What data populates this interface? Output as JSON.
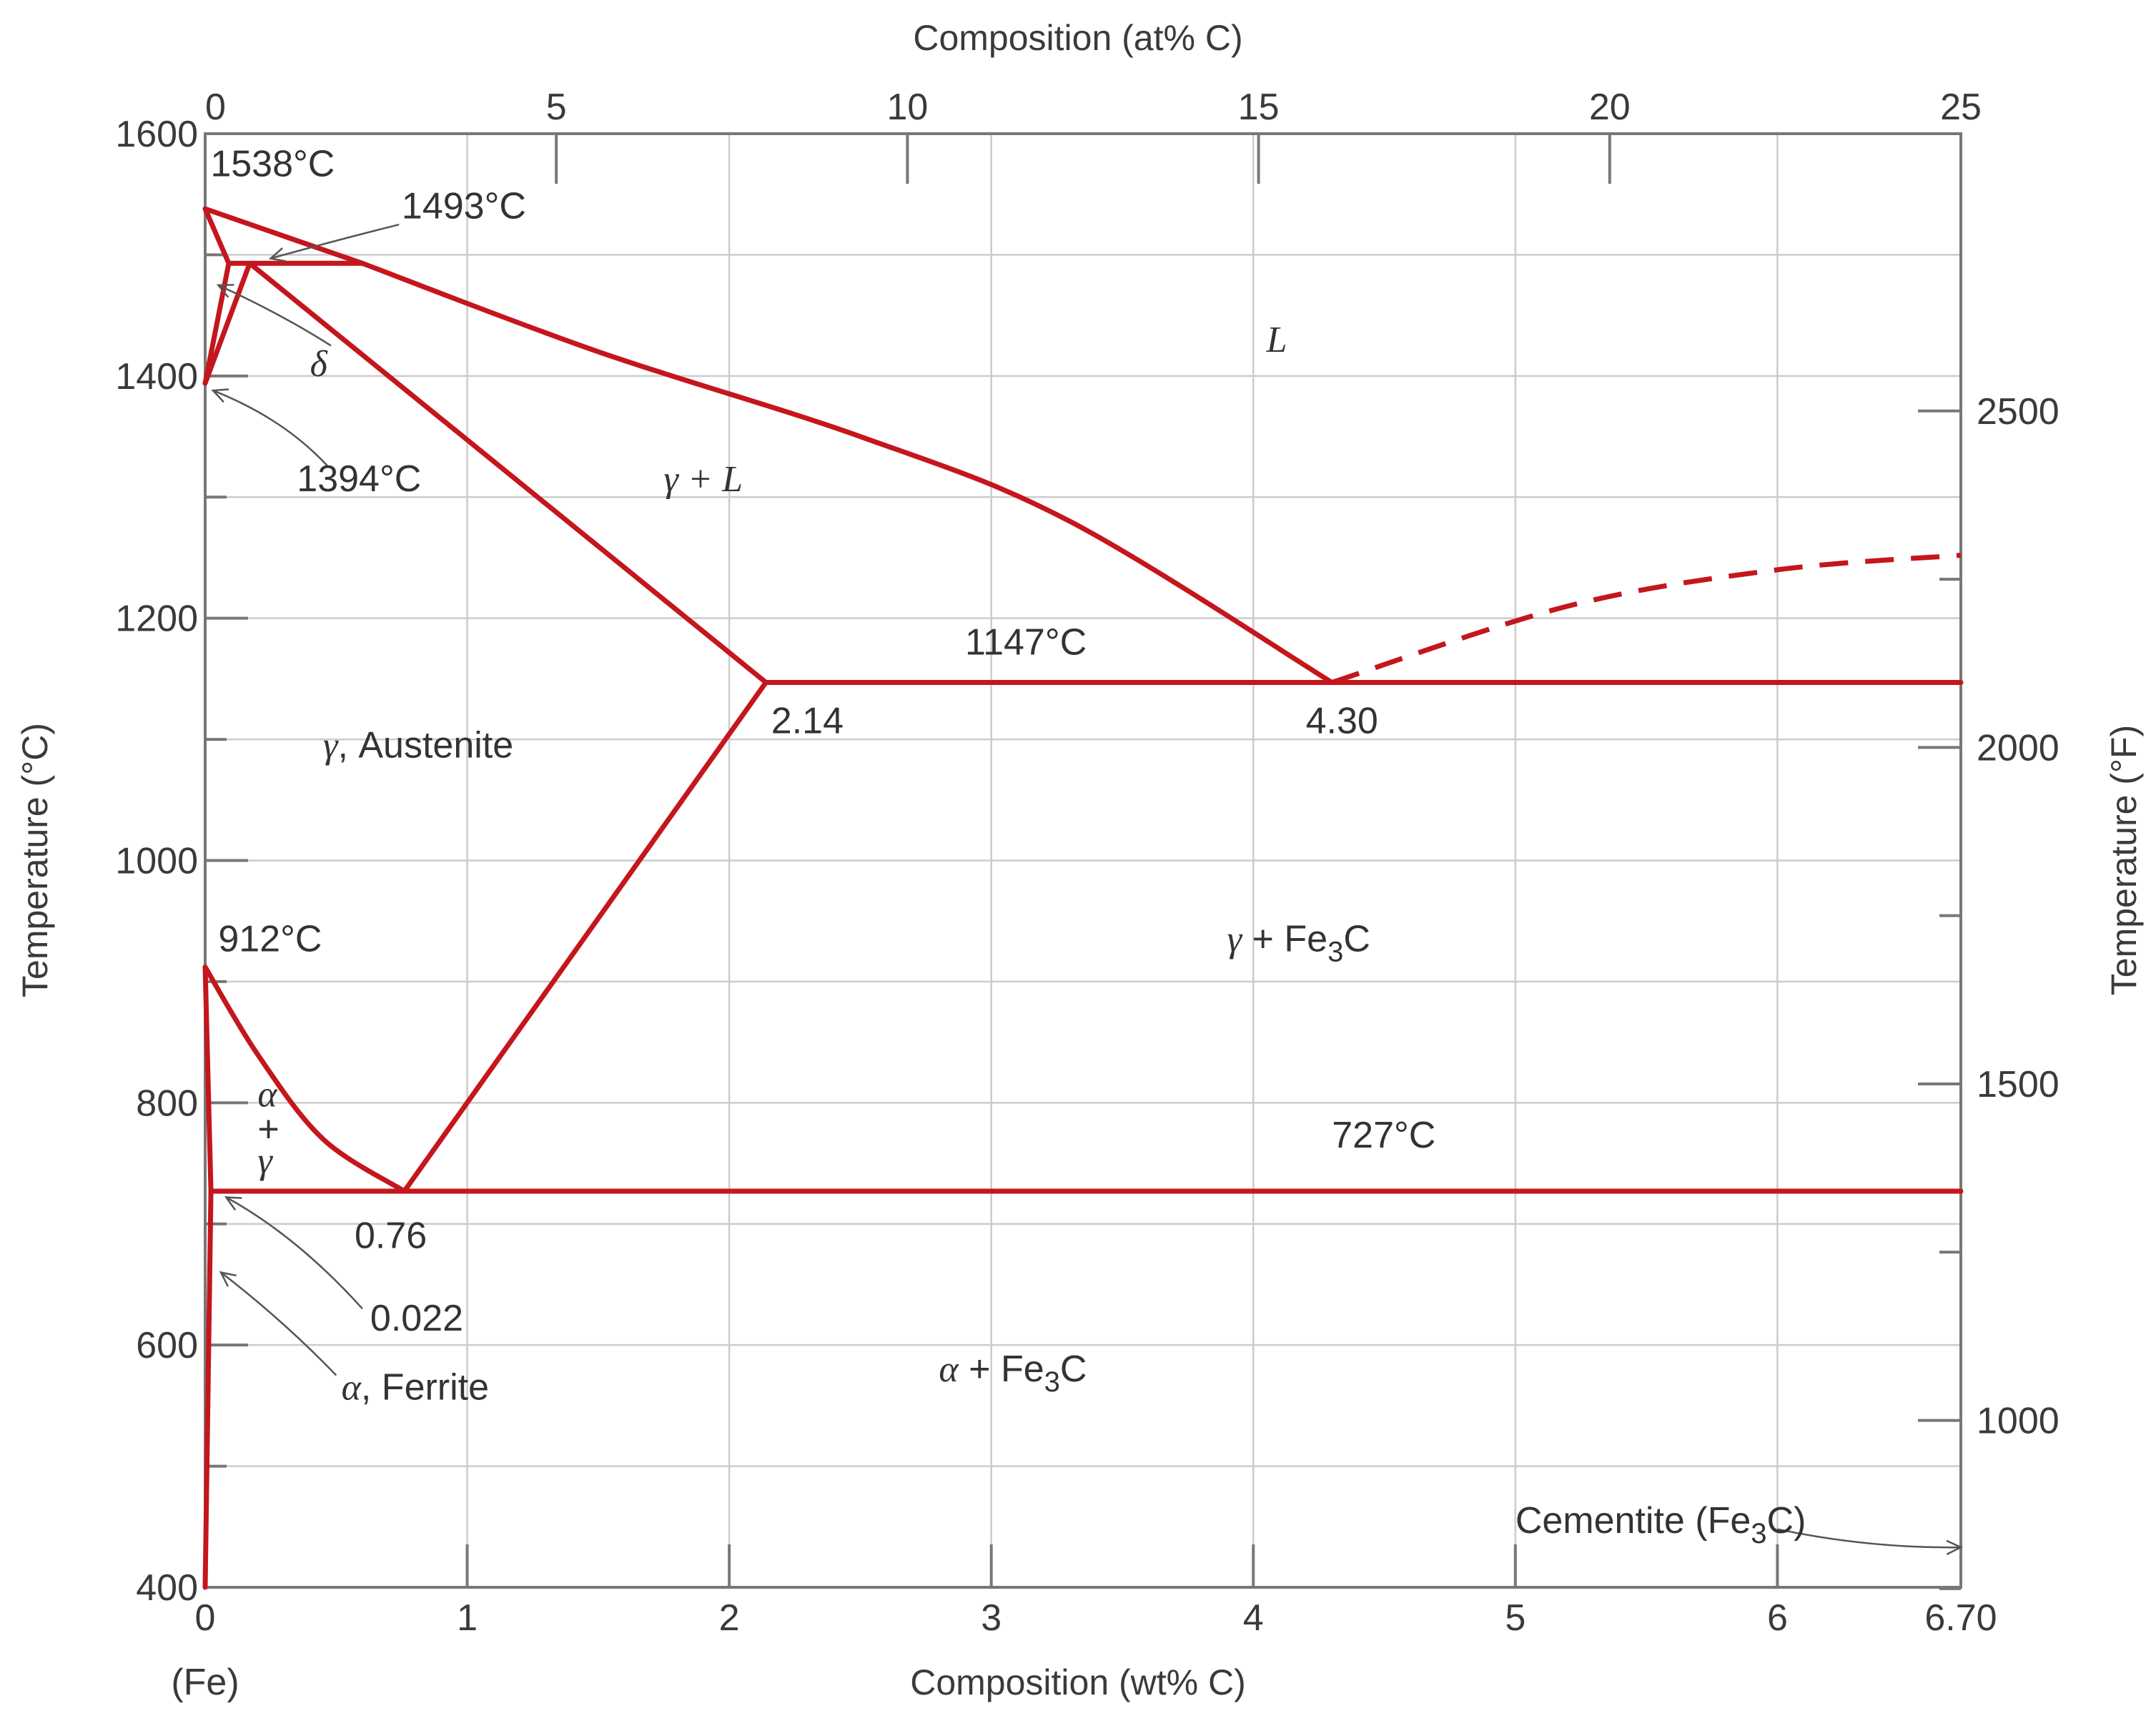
{
  "chart_data": {
    "type": "line",
    "title": "",
    "xlabel": "Composition (wt% C)",
    "x2label": "Composition (at% C)",
    "ylabel": "Temperature (°C)",
    "y2label": "Temperature (°F)",
    "xlim": [
      0,
      6.7
    ],
    "ylim": [
      400,
      1600
    ],
    "x_ticks": [
      "0",
      "1",
      "2",
      "3",
      "4",
      "5",
      "6",
      "6.70"
    ],
    "x_tick_values": [
      0,
      1,
      2,
      3,
      4,
      5,
      6,
      6.7
    ],
    "x_origin_label": "(Fe)",
    "x2_ticks": [
      "0",
      "5",
      "10",
      "15",
      "20",
      "25"
    ],
    "x2_tick_values": [
      0,
      5,
      10,
      15,
      20,
      25
    ],
    "y_ticks": [
      "400",
      "600",
      "800",
      "1000",
      "1200",
      "1400",
      "1600"
    ],
    "y_tick_values": [
      400,
      600,
      800,
      1000,
      1200,
      1400,
      1600
    ],
    "y2_ticks": [
      "1000",
      "1500",
      "2000",
      "2500"
    ],
    "y2_tick_values": [
      1000,
      1500,
      2000,
      2500
    ],
    "grid": true,
    "series": [
      {
        "style": "solid",
        "points": [
          [
            0,
            1538
          ],
          [
            0.6,
            1493
          ]
        ]
      },
      {
        "style": "solid",
        "points": [
          [
            0,
            1538
          ],
          [
            0.09,
            1493
          ]
        ]
      },
      {
        "style": "solid",
        "points": [
          [
            0.09,
            1493
          ],
          [
            0.6,
            1493
          ]
        ]
      },
      {
        "style": "solid",
        "points": [
          [
            0,
            1394
          ],
          [
            0.09,
            1493
          ]
        ]
      },
      {
        "style": "solid",
        "points": [
          [
            0,
            1394
          ],
          [
            0.17,
            1493
          ]
        ]
      },
      {
        "style": "solid",
        "points": [
          [
            0.6,
            1493
          ],
          [
            1.5,
            1420
          ],
          [
            2.5,
            1350
          ],
          [
            3.3,
            1280
          ],
          [
            4.3,
            1147
          ]
        ]
      },
      {
        "style": "solid",
        "points": [
          [
            0.17,
            1493
          ],
          [
            2.14,
            1147
          ]
        ]
      },
      {
        "style": "solid",
        "points": [
          [
            2.14,
            1147
          ],
          [
            6.7,
            1147
          ]
        ]
      },
      {
        "style": "solid",
        "points": [
          [
            0.76,
            727
          ],
          [
            2.14,
            1147
          ]
        ]
      },
      {
        "style": "solid",
        "points": [
          [
            0,
            912
          ],
          [
            0.2,
            840
          ],
          [
            0.45,
            770
          ],
          [
            0.76,
            727
          ]
        ]
      },
      {
        "style": "solid",
        "points": [
          [
            0,
            912
          ],
          [
            0.022,
            727
          ]
        ]
      },
      {
        "style": "solid",
        "points": [
          [
            0.022,
            727
          ],
          [
            6.7,
            727
          ]
        ]
      },
      {
        "style": "solid",
        "points": [
          [
            0,
            400
          ],
          [
            0.022,
            727
          ]
        ]
      },
      {
        "style": "dashed",
        "points": [
          [
            4.3,
            1147
          ],
          [
            5.2,
            1210
          ],
          [
            6.0,
            1240
          ],
          [
            6.7,
            1252
          ]
        ]
      }
    ],
    "annotations": [
      {
        "text": "1538°C",
        "x": 0.02,
        "y": 1565
      },
      {
        "text": "1493°C",
        "x": 0.75,
        "y": 1530
      },
      {
        "text": "δ",
        "x": 0.4,
        "y": 1400,
        "italic": true
      },
      {
        "text": "1394°C",
        "x": 0.35,
        "y": 1305
      },
      {
        "text": "L",
        "x": 4.05,
        "y": 1420,
        "italic": true
      },
      {
        "text": "γ + L",
        "x": 1.75,
        "y": 1305,
        "italic": true
      },
      {
        "text": "1147°C",
        "x": 2.9,
        "y": 1170
      },
      {
        "text": "2.14",
        "x": 2.16,
        "y": 1105
      },
      {
        "text": "4.30",
        "x": 4.2,
        "y": 1105
      },
      {
        "text": "γ, Austenite",
        "x": 0.45,
        "y": 1085
      },
      {
        "text": "912°C",
        "x": 0.05,
        "y": 925
      },
      {
        "text": "γ + Fe3C",
        "x": 3.9,
        "y": 925
      },
      {
        "text": "α",
        "x": 0.2,
        "y": 797,
        "italic": true
      },
      {
        "text": "+",
        "x": 0.2,
        "y": 768
      },
      {
        "text": "γ",
        "x": 0.2,
        "y": 742,
        "italic": true
      },
      {
        "text": "727°C",
        "x": 4.3,
        "y": 763
      },
      {
        "text": "0.76",
        "x": 0.57,
        "y": 680
      },
      {
        "text": "0.022",
        "x": 0.63,
        "y": 612
      },
      {
        "text": "α, Ferrite",
        "x": 0.52,
        "y": 555
      },
      {
        "text": "α + Fe3C",
        "x": 2.8,
        "y": 570
      },
      {
        "text": "Cementite (Fe3C)",
        "x": 5.0,
        "y": 445
      }
    ]
  }
}
